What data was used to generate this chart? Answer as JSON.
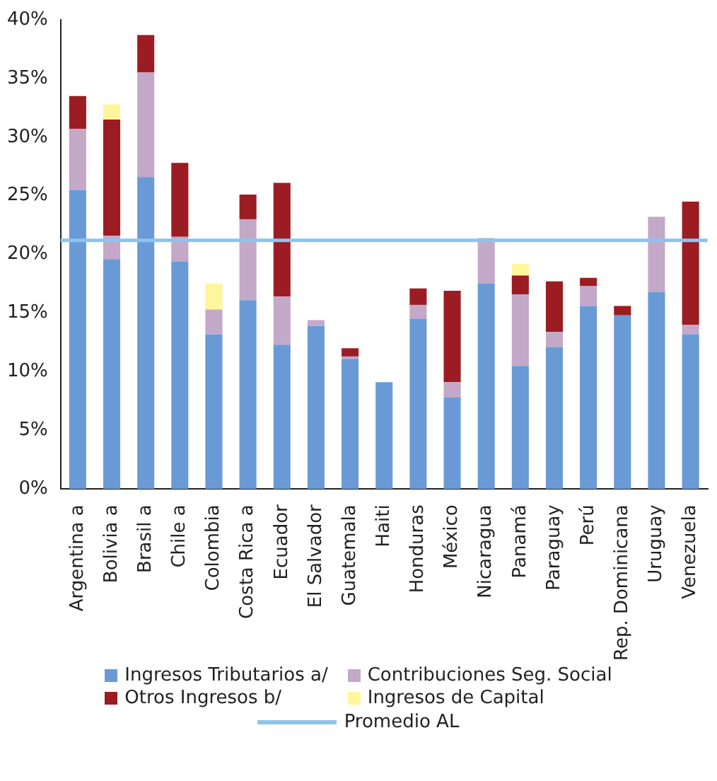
{
  "chart_data": {
    "type": "bar",
    "stacked": true,
    "categories": [
      "Argentina a",
      "Bolivia a",
      "Brasil a",
      "Chile a",
      "Colombia",
      "Costa Rica a",
      "Ecuador",
      "El Salvador",
      "Guatemala",
      "Haiti",
      "Honduras",
      "México",
      "Nicaragua",
      "Panamá",
      "Paraguay",
      "Perú",
      "Rep. Dominicana",
      "Uruguay",
      "Venezuela"
    ],
    "series": [
      {
        "name": "Ingresos Tributarios a/",
        "color": "#6a9ad6",
        "values": [
          25.5,
          19.6,
          26.6,
          19.4,
          13.2,
          16.1,
          12.3,
          13.9,
          11.1,
          9.1,
          14.5,
          7.8,
          17.5,
          10.5,
          12.1,
          15.6,
          14.8,
          16.8,
          13.2
        ]
      },
      {
        "name": "Contribuciones Seg. Social",
        "color": "#c4a8c8",
        "values": [
          5.2,
          2.0,
          8.9,
          2.1,
          2.1,
          6.9,
          4.1,
          0.5,
          0.2,
          0,
          1.2,
          1.3,
          3.9,
          6.1,
          1.3,
          1.7,
          0,
          6.4,
          0.8
        ]
      },
      {
        "name": "Otros Ingresos b/",
        "color": "#9b1c22",
        "values": [
          2.8,
          9.9,
          3.2,
          6.3,
          0,
          2.1,
          9.7,
          0,
          0.7,
          0,
          1.4,
          7.8,
          0,
          1.6,
          4.3,
          0.7,
          0.8,
          0,
          10.5
        ]
      },
      {
        "name": "Ingresos de Capital",
        "color": "#fff59a",
        "values": [
          0,
          1.3,
          0,
          0,
          2.2,
          0,
          0,
          0,
          0,
          0,
          0,
          0,
          0,
          1.0,
          0,
          0,
          0,
          0,
          0
        ]
      }
    ],
    "ylim": [
      0,
      40
    ],
    "yticks": [
      {
        "value": 0,
        "label": "0%"
      },
      {
        "value": 5,
        "label": "5%"
      },
      {
        "value": 10,
        "label": "10%"
      },
      {
        "value": 15,
        "label": "15%"
      },
      {
        "value": 20,
        "label": "20%"
      },
      {
        "value": 25,
        "label": "25%"
      },
      {
        "value": 30,
        "label": "30%"
      },
      {
        "value": 35,
        "label": "35%"
      },
      {
        "value": 40,
        "label": "40%"
      }
    ],
    "ref_lines": [
      {
        "axis": "y",
        "value": 21.2,
        "label": "Promedio AL",
        "color": "#8ec4ee"
      }
    ],
    "grid": false,
    "legend": "bottom"
  }
}
